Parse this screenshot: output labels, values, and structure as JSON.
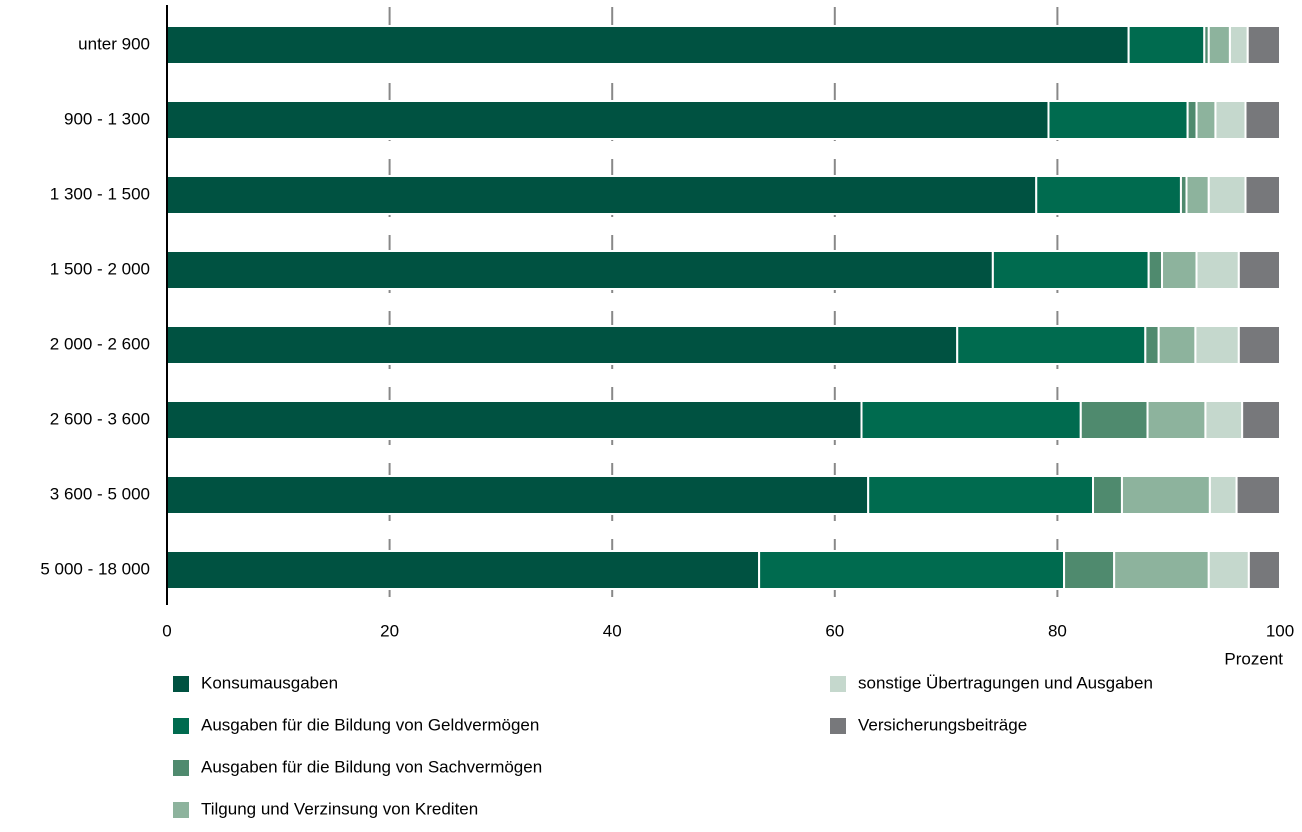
{
  "chart_data": {
    "type": "stacked-barh",
    "categories": [
      "unter 900",
      "900 - 1 300",
      "1 300 - 1 500",
      "1 500 - 2 000",
      "2 000 - 2 600",
      "2 600 - 3 600",
      "3 600 - 5 000",
      "5 000 - 18 000"
    ],
    "series": [
      {
        "name": "Konsumausgaben",
        "color": "#005241",
        "values": [
          86.4,
          79.2,
          78.1,
          74.2,
          71.0,
          62.4,
          63.0,
          53.2
        ]
      },
      {
        "name": "Ausgaben für die Bildung von Geldvermögen",
        "color": "#006b4f",
        "values": [
          6.8,
          12.5,
          13.0,
          14.0,
          16.9,
          19.7,
          20.2,
          27.4
        ]
      },
      {
        "name": "Ausgaben für die Bildung von Sachvermögen",
        "color": "#4f8a6e",
        "values": [
          0.4,
          0.8,
          0.5,
          1.2,
          1.2,
          6.0,
          2.6,
          4.5
        ]
      },
      {
        "name": "Tilgung und Verzinsung von Krediten",
        "color": "#8db39d",
        "values": [
          1.9,
          1.7,
          2.0,
          3.1,
          3.3,
          5.2,
          7.9,
          8.5
        ]
      },
      {
        "name": "sonstige Übertragungen und Ausgaben",
        "color": "#c5d8cd",
        "values": [
          1.6,
          2.7,
          3.3,
          3.8,
          3.9,
          3.3,
          2.4,
          3.6
        ]
      },
      {
        "name": "Versicherungsbeiträge",
        "color": "#77787b",
        "values": [
          2.9,
          3.1,
          3.1,
          3.7,
          3.7,
          3.4,
          3.9,
          2.8
        ]
      }
    ],
    "x_label": "Prozent",
    "xlim": [
      0,
      100
    ],
    "xticks": [
      0,
      20,
      40,
      60,
      80,
      100
    ],
    "grid": true
  }
}
